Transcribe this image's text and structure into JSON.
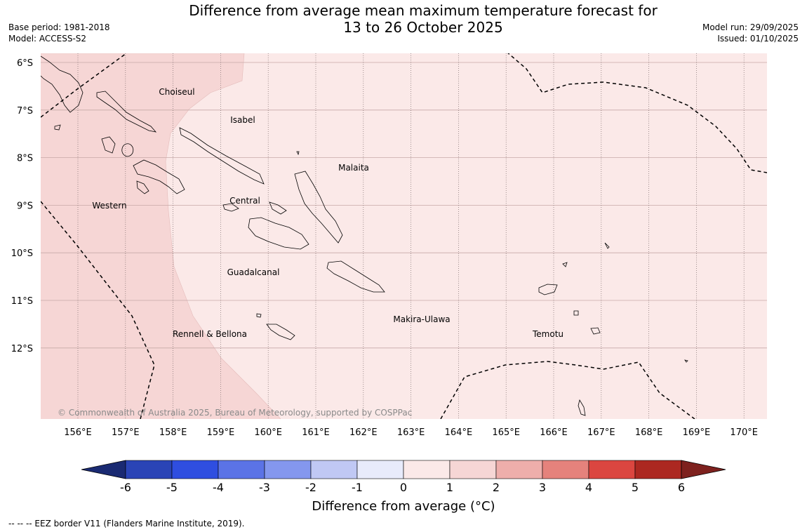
{
  "title": {
    "line1": "Difference from average mean maximum temperature forecast for",
    "line2": "13 to 26 October 2025"
  },
  "meta_left": {
    "base_period": "Base period: 1981-2018",
    "model": "Model: ACCESS-S2"
  },
  "meta_right": {
    "model_run": "Model run: 29/09/2025",
    "issued": "Issued: 01/10/2025"
  },
  "map": {
    "background_color": "#fbe9e8",
    "anomaly_zone_color": "#f6d6d5",
    "copyright": "© Commonwealth of Australia 2025, Bureau of Meteorology, supported by COSPPac",
    "longitude_labels": [
      "156°E",
      "157°E",
      "158°E",
      "159°E",
      "160°E",
      "161°E",
      "162°E",
      "163°E",
      "164°E",
      "165°E",
      "166°E",
      "167°E",
      "168°E",
      "169°E",
      "170°E"
    ],
    "latitude_labels": [
      "6°S",
      "7°S",
      "8°S",
      "9°S",
      "10°S",
      "11°S",
      "12°S"
    ],
    "province_labels": [
      "Choiseul",
      "Isabel",
      "Malaita",
      "Western",
      "Central",
      "Guadalcanal",
      "Makira-Ulawa",
      "Rennell & Bellona",
      "Temotu"
    ]
  },
  "colorbar": {
    "title": "Difference from average (°C)",
    "ticks": [
      "-6",
      "-5",
      "-4",
      "-3",
      "-2",
      "-1",
      "0",
      "1",
      "2",
      "3",
      "4",
      "5",
      "6"
    ],
    "colors": [
      "#1a2a72",
      "#2a44b6",
      "#2f4ee0",
      "#5b73e6",
      "#8497ee",
      "#c0c8f4",
      "#e8ebfb",
      "#fbe9e8",
      "#f6d6d5",
      "#eeaeab",
      "#e5827c",
      "#db4640",
      "#ac2821",
      "#7e211e"
    ]
  },
  "footnote": "--  --  -- EEZ border V11 (Flanders Marine Institute, 2019)."
}
